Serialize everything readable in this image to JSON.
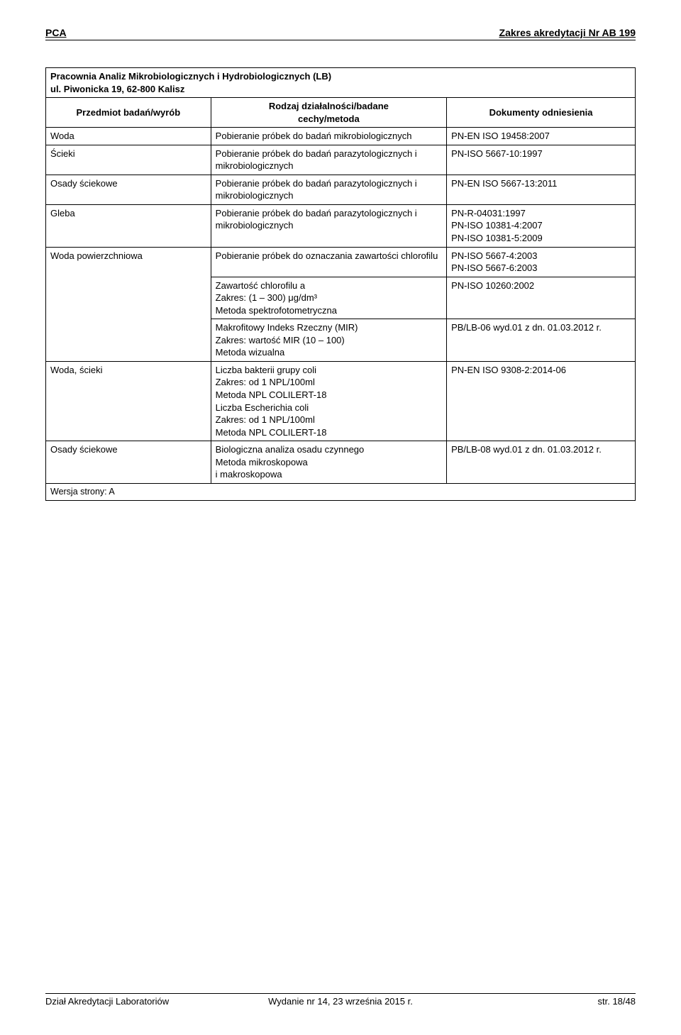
{
  "header": {
    "left": "PCA",
    "right": "Zakres akredytacji Nr AB 199"
  },
  "table": {
    "title_line1": "Pracownia Analiz Mikrobiologicznych i Hydrobiologicznych (LB)",
    "title_line2": "ul. Piwonicka 19, 62-800 Kalisz",
    "head_col1": "Przedmiot badań/wyrób",
    "head_col2_line1": "Rodzaj działalności/badane",
    "head_col2_line2": "cechy/metoda",
    "head_col3": "Dokumenty odniesienia",
    "rows": [
      {
        "c1": "Woda",
        "c2": "Pobieranie próbek do badań mikrobiologicznych",
        "c3": "PN-EN ISO 19458:2007"
      },
      {
        "c1": "Ścieki",
        "c2": "Pobieranie próbek do badań parazytologicznych i mikrobiologicznych",
        "c3": "PN-ISO 5667-10:1997"
      },
      {
        "c1": "Osady ściekowe",
        "c2": "Pobieranie próbek do badań parazytologicznych i mikrobiologicznych",
        "c3": "PN-EN ISO 5667-13:2011"
      },
      {
        "c1": "Gleba",
        "c2": "Pobieranie próbek do badań parazytologicznych i mikrobiologicznych",
        "c3": "PN-R-04031:1997\nPN-ISO 10381-4:2007\nPN-ISO 10381-5:2009"
      }
    ],
    "row_wp": {
      "c1": "Woda powierzchniowa",
      "r1_c2": "Pobieranie próbek do oznaczania zawartości chlorofilu",
      "r1_c3": "PN-ISO 5667-4:2003\nPN-ISO 5667-6:2003",
      "r2_c2": "Zawartość chlorofilu a\nZakres: (1 – 300) μg/dm³\nMetoda spektrofotometryczna",
      "r2_c3": "PN-ISO 10260:2002",
      "r3_c2": "Makrofitowy Indeks Rzeczny (MIR)\nZakres: wartość MIR (10 – 100)\nMetoda wizualna",
      "r3_c3": "PB/LB-06 wyd.01 z dn. 01.03.2012 r."
    },
    "row_ws": {
      "c1": "Woda, ścieki",
      "c2": "Liczba bakterii grupy coli\nZakres: od 1 NPL/100ml\nMetoda NPL COLILERT-18\nLiczba Escherichia coli\nZakres: od 1 NPL/100ml\nMetoda NPL COLILERT-18",
      "c3": "PN-EN ISO 9308-2:2014-06"
    },
    "row_os2": {
      "c1": "Osady ściekowe",
      "c2": "Biologiczna analiza osadu czynnego\nMetoda mikroskopowa\ni makroskopowa",
      "c3": "PB/LB-08 wyd.01 z dn. 01.03.2012 r."
    },
    "version": "Wersja strony: A"
  },
  "footer": {
    "left": "Dział Akredytacji Laboratoriów",
    "center": "Wydanie nr 14, 23 września 2015 r.",
    "right": "str. 18/48"
  }
}
